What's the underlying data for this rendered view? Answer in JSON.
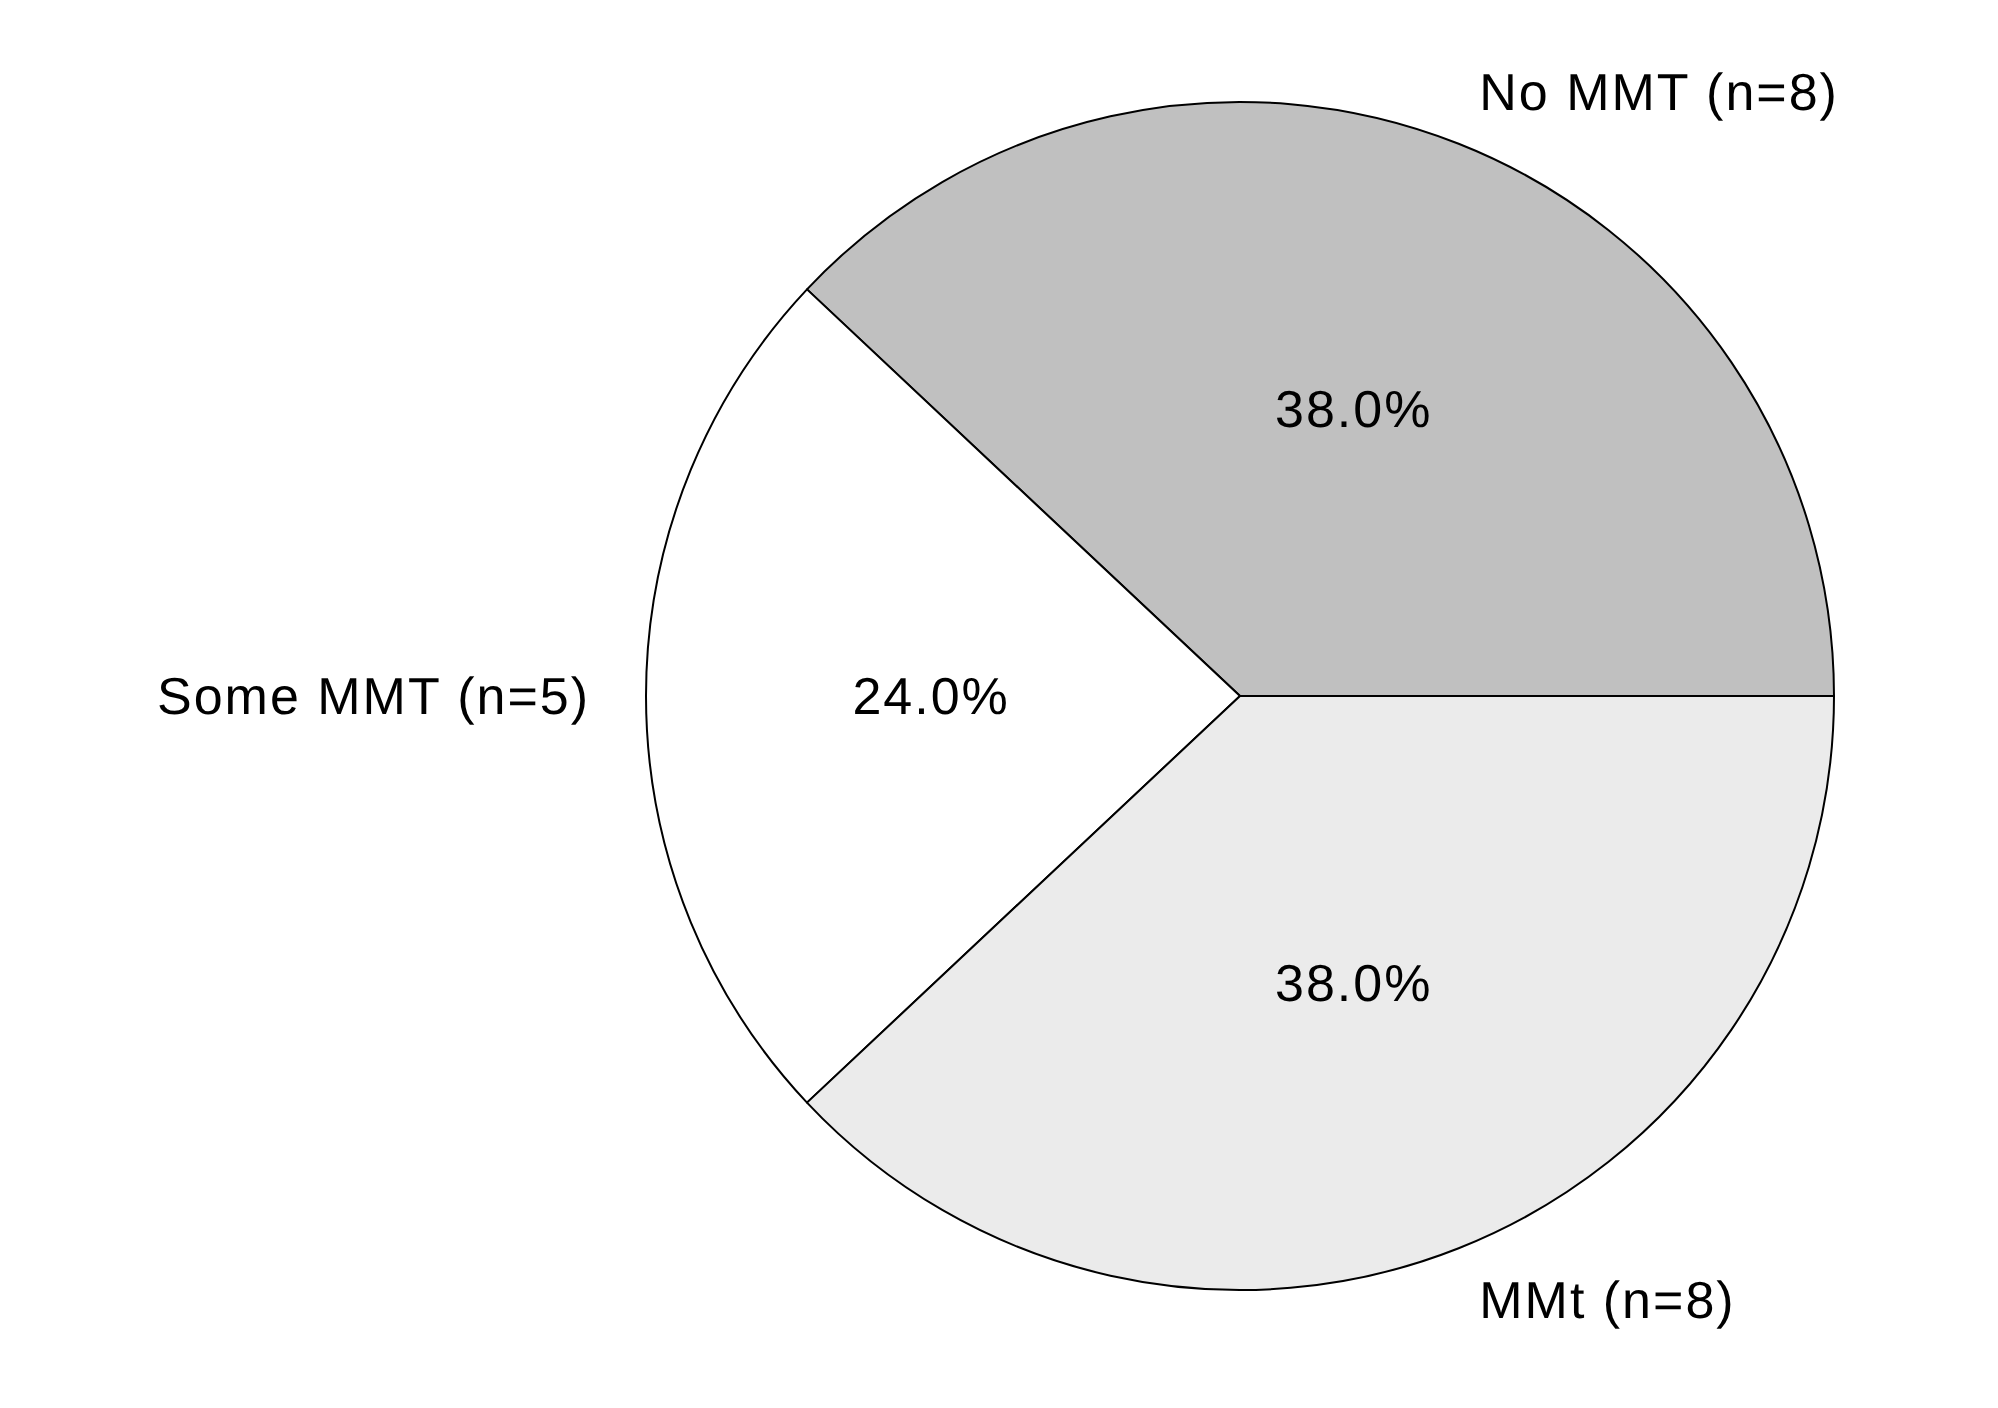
{
  "chart_data": {
    "type": "pie",
    "categories": [
      "No MMT (n=8)",
      "Some MMT (n=5)",
      "MMt (n=8)"
    ],
    "values": [
      38,
      24,
      38
    ],
    "colors": [
      "#c0c0c0",
      "#ffffff",
      "#ebebeb"
    ],
    "value_labels": [
      "38.0%",
      "24.0%",
      "38.0%"
    ]
  }
}
